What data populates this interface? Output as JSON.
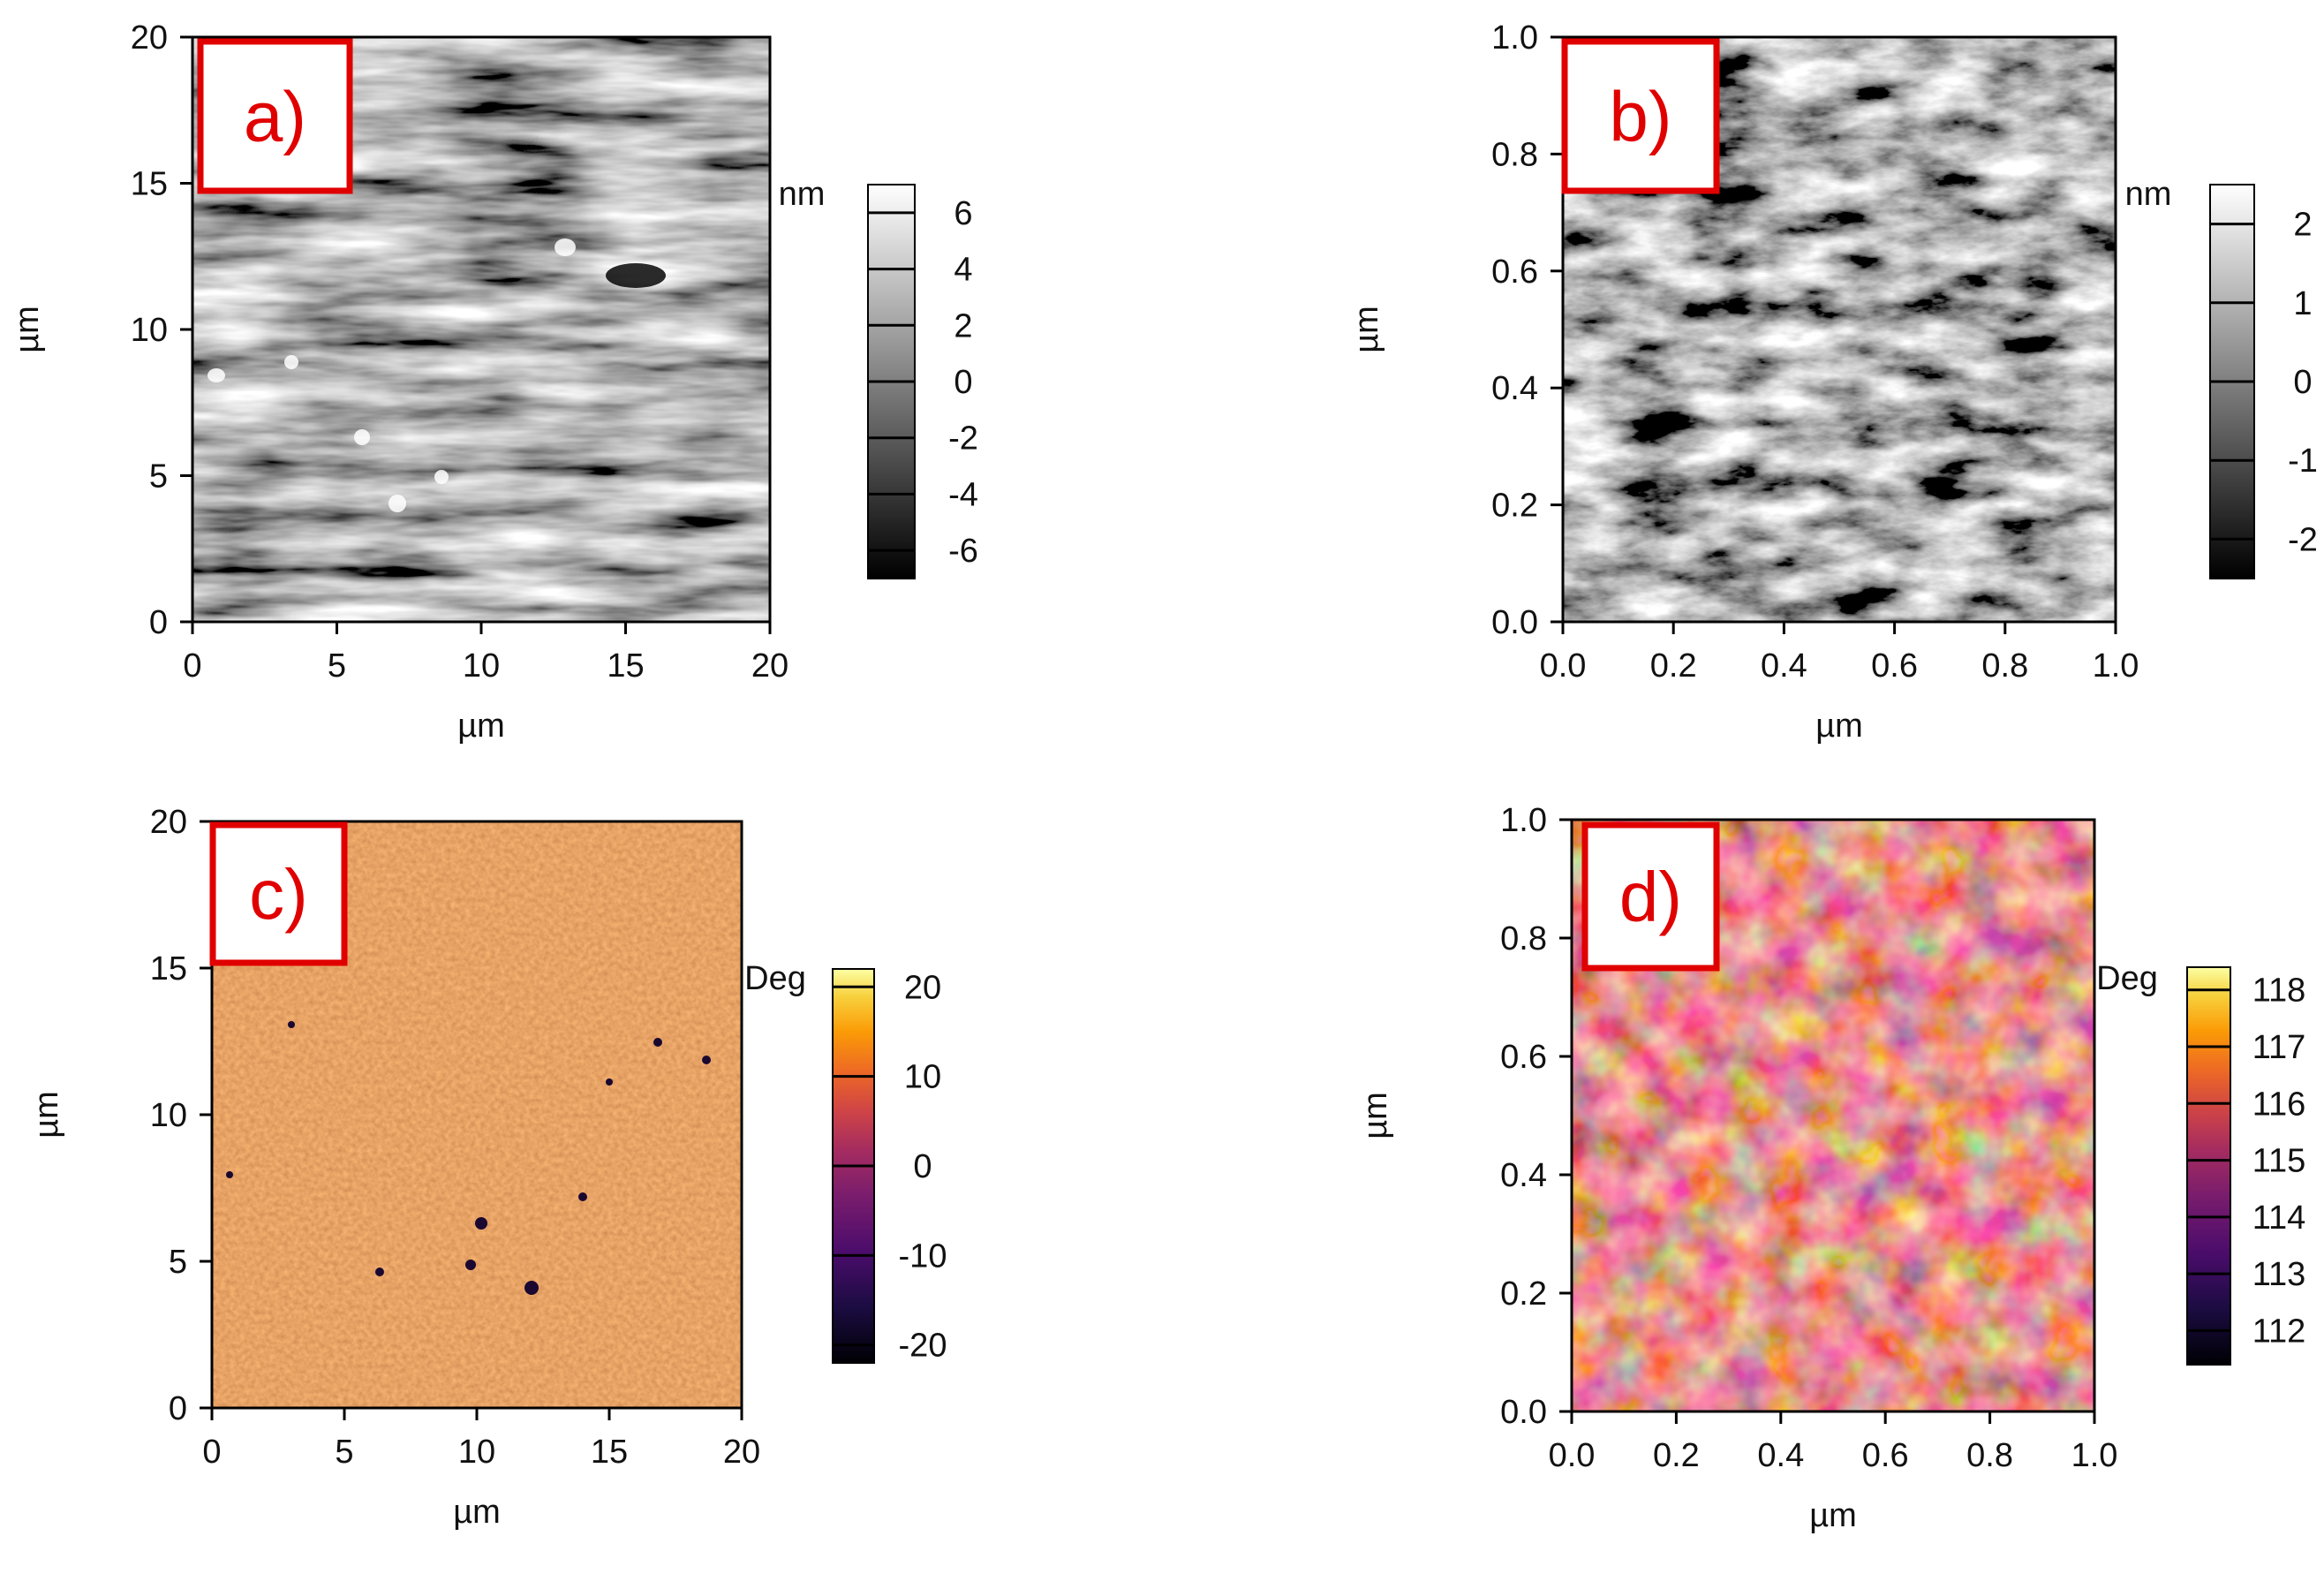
{
  "chart_data": [
    {
      "type": "heatmap",
      "panel": "a)",
      "xlabel": "µm",
      "ylabel": "µm",
      "x_ticks": [
        "0",
        "5",
        "10",
        "15",
        "20"
      ],
      "y_ticks": [
        "0",
        "5",
        "10",
        "15",
        "20"
      ],
      "xlim": [
        0,
        20
      ],
      "ylim": [
        0,
        20
      ],
      "colorbar": {
        "unit": "nm",
        "ticks": [
          "6",
          "4",
          "2",
          "0",
          "-2",
          "-4",
          "-6"
        ],
        "range": [
          -7,
          7
        ],
        "colormap": "gray"
      }
    },
    {
      "type": "heatmap",
      "panel": "b)",
      "xlabel": "µm",
      "ylabel": "µm",
      "x_ticks": [
        "0.0",
        "0.2",
        "0.4",
        "0.6",
        "0.8",
        "1.0"
      ],
      "y_ticks": [
        "0.0",
        "0.2",
        "0.4",
        "0.6",
        "0.8",
        "1.0"
      ],
      "xlim": [
        0,
        1
      ],
      "ylim": [
        0,
        1
      ],
      "colorbar": {
        "unit": "nm",
        "ticks": [
          "2",
          "1",
          "0",
          "-1",
          "-2"
        ],
        "range": [
          -2.5,
          2.5
        ],
        "colormap": "gray"
      }
    },
    {
      "type": "heatmap",
      "panel": "c)",
      "xlabel": "µm",
      "ylabel": "µm",
      "x_ticks": [
        "0",
        "5",
        "10",
        "15",
        "20"
      ],
      "y_ticks": [
        "0",
        "5",
        "10",
        "15",
        "20"
      ],
      "xlim": [
        0,
        20
      ],
      "ylim": [
        0,
        20
      ],
      "colorbar": {
        "unit": "Deg",
        "ticks": [
          "20",
          "10",
          "0",
          "-10",
          "-20"
        ],
        "range": [
          -22,
          22
        ],
        "colormap": "inferno"
      }
    },
    {
      "type": "heatmap",
      "panel": "d)",
      "xlabel": "µm",
      "ylabel": "µm",
      "x_ticks": [
        "0.0",
        "0.2",
        "0.4",
        "0.6",
        "0.8",
        "1.0"
      ],
      "y_ticks": [
        "0.0",
        "0.2",
        "0.4",
        "0.6",
        "0.8",
        "1.0"
      ],
      "xlim": [
        0,
        1
      ],
      "ylim": [
        0,
        1
      ],
      "colorbar": {
        "unit": "Deg",
        "ticks": [
          "118",
          "117",
          "116",
          "115",
          "114",
          "113",
          "112"
        ],
        "range": [
          111.4,
          118.4
        ],
        "colormap": "inferno"
      }
    }
  ],
  "colors": {
    "panel_label": "#e00000",
    "gray_dark": "#000000",
    "gray_light": "#ffffff",
    "inferno_low": "#000004",
    "inferno_mid": "#c53c4e",
    "inferno_high": "#fcffa4"
  }
}
